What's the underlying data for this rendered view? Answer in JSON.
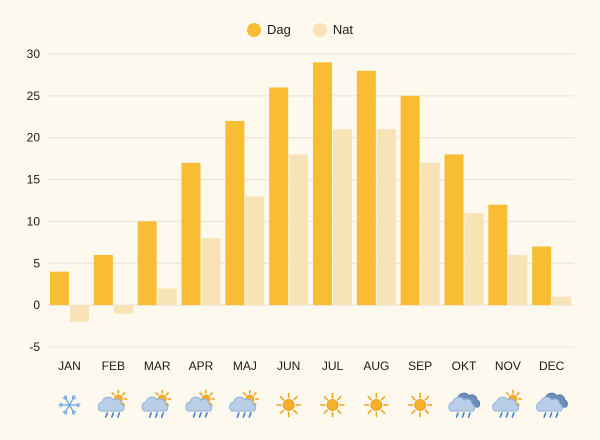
{
  "chart_data": {
    "type": "bar",
    "categories": [
      "JAN",
      "FEB",
      "MAR",
      "APR",
      "MAJ",
      "JUN",
      "JUL",
      "AUG",
      "SEP",
      "OKT",
      "NOV",
      "DEC"
    ],
    "series": [
      {
        "name": "Dag",
        "color": "#f8bd34",
        "values": [
          4,
          6,
          10,
          17,
          22,
          26,
          29,
          28,
          25,
          18,
          12,
          7
        ]
      },
      {
        "name": "Nat",
        "color": "#f8e3b6",
        "values": [
          -2,
          -1,
          2,
          8,
          13,
          18,
          21,
          21,
          17,
          11,
          6,
          1
        ]
      }
    ],
    "ylim": [
      -5,
      30
    ],
    "yticks": [
      -5,
      0,
      5,
      10,
      15,
      20,
      25,
      30
    ],
    "grid": true,
    "legend_position": "top-center",
    "weather_icons": [
      "snowflake-icon",
      "rain-sun-icon",
      "rain-sun-icon",
      "rain-sun-icon",
      "rain-sun-icon",
      "sun-icon",
      "sun-icon",
      "sun-icon",
      "sun-icon",
      "cloud-rain-icon",
      "rain-sun-icon",
      "cloud-rain-icon"
    ]
  }
}
